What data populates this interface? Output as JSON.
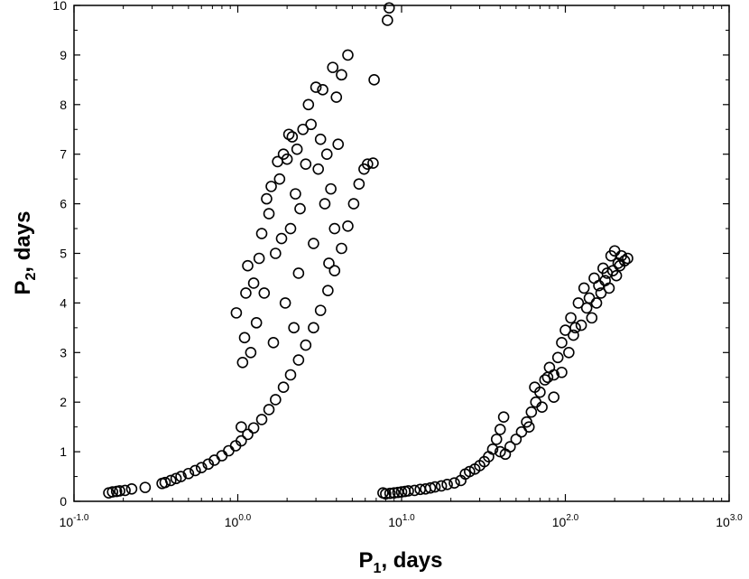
{
  "chart_data": {
    "type": "scatter",
    "title": "",
    "xlabel": {
      "main": "P",
      "sub": "1",
      "rest": ", days"
    },
    "ylabel": {
      "main": "P",
      "sub": "2",
      "rest": ", days"
    },
    "x_scale": "log",
    "xlim": [
      0.1,
      1000
    ],
    "ylim": [
      0,
      10
    ],
    "grid": false,
    "legend": "none",
    "marker": "open-circle",
    "colors": {
      "marker": "#000000",
      "axis": "#000000",
      "background": "#ffffff"
    },
    "x_ticks": [
      {
        "base": "10",
        "exp": "-1.0"
      },
      {
        "base": "10",
        "exp": "0.0"
      },
      {
        "base": "10",
        "exp": "1.0"
      },
      {
        "base": "10",
        "exp": "2.0"
      },
      {
        "base": "10",
        "exp": "3.0"
      }
    ],
    "y_ticks": [
      "0",
      "1",
      "2",
      "3",
      "4",
      "5",
      "6",
      "7",
      "8",
      "9",
      "10"
    ],
    "series": [
      {
        "points": [
          [
            0.163,
            0.17
          ],
          [
            0.172,
            0.19
          ],
          [
            0.182,
            0.2
          ],
          [
            0.19,
            0.21
          ],
          [
            0.205,
            0.22
          ],
          [
            0.225,
            0.25
          ],
          [
            0.272,
            0.28
          ],
          [
            0.345,
            0.36
          ],
          [
            0.36,
            0.38
          ],
          [
            0.39,
            0.42
          ],
          [
            0.42,
            0.46
          ],
          [
            0.45,
            0.5
          ],
          [
            0.5,
            0.56
          ],
          [
            0.55,
            0.62
          ],
          [
            0.6,
            0.68
          ],
          [
            0.66,
            0.75
          ],
          [
            0.72,
            0.83
          ],
          [
            0.8,
            0.92
          ],
          [
            0.88,
            1.02
          ],
          [
            0.97,
            1.12
          ],
          [
            1.05,
            1.22
          ],
          [
            1.15,
            1.35
          ],
          [
            1.25,
            1.48
          ],
          [
            1.4,
            1.65
          ],
          [
            1.55,
            1.85
          ],
          [
            1.7,
            2.05
          ],
          [
            1.9,
            2.3
          ],
          [
            2.1,
            2.55
          ],
          [
            2.35,
            2.85
          ],
          [
            2.6,
            3.15
          ],
          [
            2.9,
            3.5
          ],
          [
            3.2,
            3.85
          ],
          [
            3.55,
            4.25
          ],
          [
            3.9,
            4.65
          ],
          [
            4.3,
            5.1
          ],
          [
            4.7,
            5.55
          ],
          [
            5.1,
            6.0
          ],
          [
            5.5,
            6.4
          ],
          [
            5.9,
            6.7
          ],
          [
            6.2,
            6.8
          ],
          [
            6.7,
            6.82
          ],
          [
            0.98,
            3.8
          ],
          [
            1.05,
            1.5
          ],
          [
            1.07,
            2.8
          ],
          [
            1.1,
            3.3
          ],
          [
            1.12,
            4.2
          ],
          [
            1.15,
            4.75
          ],
          [
            1.2,
            3.0
          ],
          [
            1.25,
            4.4
          ],
          [
            1.3,
            3.6
          ],
          [
            1.35,
            4.9
          ],
          [
            1.4,
            5.4
          ],
          [
            1.45,
            4.2
          ],
          [
            1.5,
            6.1
          ],
          [
            1.55,
            5.8
          ],
          [
            1.6,
            6.35
          ],
          [
            1.65,
            3.2
          ],
          [
            1.7,
            5.0
          ],
          [
            1.75,
            6.85
          ],
          [
            1.8,
            6.5
          ],
          [
            1.85,
            5.3
          ],
          [
            1.9,
            7.0
          ],
          [
            1.95,
            4.0
          ],
          [
            2.0,
            6.9
          ],
          [
            2.05,
            7.4
          ],
          [
            2.1,
            5.5
          ],
          [
            2.15,
            7.35
          ],
          [
            2.2,
            3.5
          ],
          [
            2.25,
            6.2
          ],
          [
            2.3,
            7.1
          ],
          [
            2.35,
            4.6
          ],
          [
            2.4,
            5.9
          ],
          [
            2.5,
            7.5
          ],
          [
            2.6,
            6.8
          ],
          [
            2.7,
            8.0
          ],
          [
            2.8,
            7.6
          ],
          [
            2.9,
            5.2
          ],
          [
            3.0,
            8.35
          ],
          [
            3.1,
            6.7
          ],
          [
            3.2,
            7.3
          ],
          [
            3.3,
            8.3
          ],
          [
            3.4,
            6.0
          ],
          [
            3.5,
            7.0
          ],
          [
            3.6,
            4.8
          ],
          [
            3.7,
            6.3
          ],
          [
            3.8,
            8.75
          ],
          [
            3.9,
            5.5
          ],
          [
            4.0,
            8.15
          ],
          [
            4.1,
            7.2
          ],
          [
            4.3,
            8.6
          ],
          [
            4.7,
            9.0
          ],
          [
            6.8,
            8.5
          ],
          [
            8.2,
            9.7
          ],
          [
            8.4,
            9.95
          ],
          [
            7.7,
            0.17
          ],
          [
            8.0,
            0.15
          ],
          [
            8.5,
            0.16
          ],
          [
            9.0,
            0.17
          ],
          [
            9.5,
            0.18
          ],
          [
            10.0,
            0.19
          ],
          [
            10.5,
            0.2
          ],
          [
            11.0,
            0.21
          ],
          [
            12.0,
            0.22
          ],
          [
            13.0,
            0.24
          ],
          [
            14.0,
            0.25
          ],
          [
            15.0,
            0.27
          ],
          [
            16.0,
            0.29
          ],
          [
            17.5,
            0.31
          ],
          [
            19.0,
            0.34
          ],
          [
            21.0,
            0.37
          ],
          [
            23.0,
            0.42
          ],
          [
            24.5,
            0.55
          ],
          [
            26.0,
            0.6
          ],
          [
            28.0,
            0.65
          ],
          [
            30.0,
            0.72
          ],
          [
            32.0,
            0.8
          ],
          [
            34.0,
            0.9
          ],
          [
            36.0,
            1.05
          ],
          [
            38.0,
            1.25
          ],
          [
            40.0,
            1.45
          ],
          [
            42.0,
            1.7
          ],
          [
            40.0,
            1.0
          ],
          [
            43.0,
            0.95
          ],
          [
            46.0,
            1.1
          ],
          [
            50.0,
            1.25
          ],
          [
            54.0,
            1.4
          ],
          [
            58.0,
            1.6
          ],
          [
            62.0,
            1.8
          ],
          [
            66.0,
            2.0
          ],
          [
            70.0,
            2.2
          ],
          [
            75.0,
            2.45
          ],
          [
            80.0,
            2.7
          ],
          [
            85.0,
            2.55
          ],
          [
            90.0,
            2.9
          ],
          [
            95.0,
            3.2
          ],
          [
            100.0,
            3.45
          ],
          [
            108.0,
            3.7
          ],
          [
            115.0,
            3.5
          ],
          [
            120.0,
            4.0
          ],
          [
            130.0,
            4.3
          ],
          [
            140.0,
            4.1
          ],
          [
            150.0,
            4.5
          ],
          [
            160.0,
            4.35
          ],
          [
            170.0,
            4.7
          ],
          [
            180.0,
            4.6
          ],
          [
            190.0,
            4.95
          ],
          [
            200.0,
            5.05
          ],
          [
            210.0,
            4.8
          ],
          [
            220.0,
            4.95
          ],
          [
            230.0,
            4.85
          ],
          [
            240.0,
            4.9
          ],
          [
            60.0,
            1.5
          ],
          [
            65.0,
            2.3
          ],
          [
            72.0,
            1.9
          ],
          [
            78.0,
            2.5
          ],
          [
            85.0,
            2.1
          ],
          [
            95.0,
            2.6
          ],
          [
            105.0,
            3.0
          ],
          [
            112.0,
            3.35
          ],
          [
            125.0,
            3.55
          ],
          [
            135.0,
            3.9
          ],
          [
            145.0,
            3.7
          ],
          [
            155.0,
            4.0
          ],
          [
            165.0,
            4.2
          ],
          [
            175.0,
            4.45
          ],
          [
            185.0,
            4.3
          ],
          [
            195.0,
            4.65
          ],
          [
            205.0,
            4.55
          ],
          [
            215.0,
            4.75
          ]
        ]
      }
    ]
  }
}
